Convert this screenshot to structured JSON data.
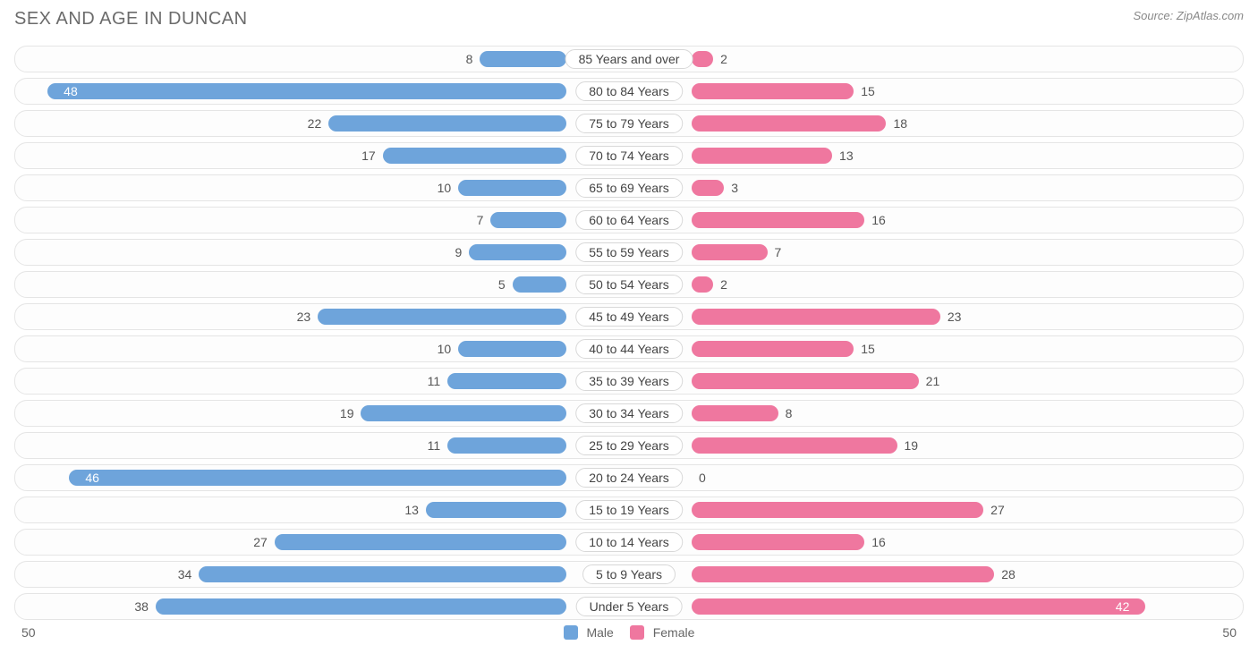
{
  "title": "SEX AND AGE IN DUNCAN",
  "source": "Source: ZipAtlas.com",
  "chart": {
    "type": "population-pyramid",
    "x_max": 50,
    "male_color": "#6ea4db",
    "female_color": "#ef779f",
    "row_border_color": "#e5e5e5",
    "background_color": "#ffffff",
    "label_border_color": "#d8d8d8",
    "value_fontsize": 14,
    "label_fontsize": 14,
    "axis_left_label": "50",
    "axis_right_label": "50",
    "categories": [
      {
        "label": "85 Years and over",
        "male": 8,
        "female": 2
      },
      {
        "label": "80 to 84 Years",
        "male": 48,
        "female": 15
      },
      {
        "label": "75 to 79 Years",
        "male": 22,
        "female": 18
      },
      {
        "label": "70 to 74 Years",
        "male": 17,
        "female": 13
      },
      {
        "label": "65 to 69 Years",
        "male": 10,
        "female": 3
      },
      {
        "label": "60 to 64 Years",
        "male": 7,
        "female": 16
      },
      {
        "label": "55 to 59 Years",
        "male": 9,
        "female": 7
      },
      {
        "label": "50 to 54 Years",
        "male": 5,
        "female": 2
      },
      {
        "label": "45 to 49 Years",
        "male": 23,
        "female": 23
      },
      {
        "label": "40 to 44 Years",
        "male": 10,
        "female": 15
      },
      {
        "label": "35 to 39 Years",
        "male": 11,
        "female": 21
      },
      {
        "label": "30 to 34 Years",
        "male": 19,
        "female": 8
      },
      {
        "label": "25 to 29 Years",
        "male": 11,
        "female": 19
      },
      {
        "label": "20 to 24 Years",
        "male": 46,
        "female": 0
      },
      {
        "label": "15 to 19 Years",
        "male": 13,
        "female": 27
      },
      {
        "label": "10 to 14 Years",
        "male": 27,
        "female": 16
      },
      {
        "label": "5 to 9 Years",
        "male": 34,
        "female": 28
      },
      {
        "label": "Under 5 Years",
        "male": 38,
        "female": 42
      }
    ]
  },
  "legend": {
    "male_label": "Male",
    "female_label": "Female"
  }
}
